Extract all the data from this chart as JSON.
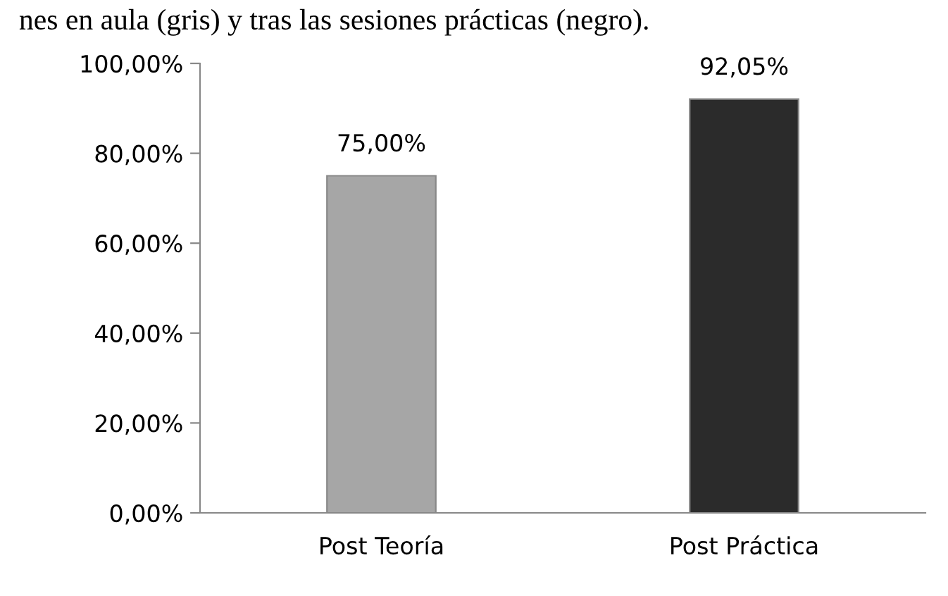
{
  "chart_data": {
    "type": "bar",
    "annotations": [
      "nes en aula (gris) y tras las sesiones prácticas (negro)."
    ],
    "categories": [
      "Post Teoría",
      "Post Práctica"
    ],
    "values": [
      75.0,
      92.05
    ],
    "colors": [
      "#a6a6a6",
      "#2b2b2b"
    ],
    "value_labels": [
      "75,00%",
      "92,05%"
    ],
    "ylim": [
      0,
      100
    ],
    "yticks": [
      {
        "value": 0,
        "label": "0,00%"
      },
      {
        "value": 20,
        "label": "20,00%"
      },
      {
        "value": 40,
        "label": "40,00%"
      },
      {
        "value": 60,
        "label": "60,00%"
      },
      {
        "value": 80,
        "label": "80,00%"
      },
      {
        "value": 100,
        "label": "100,00%"
      }
    ],
    "grid": false,
    "legend": false
  }
}
